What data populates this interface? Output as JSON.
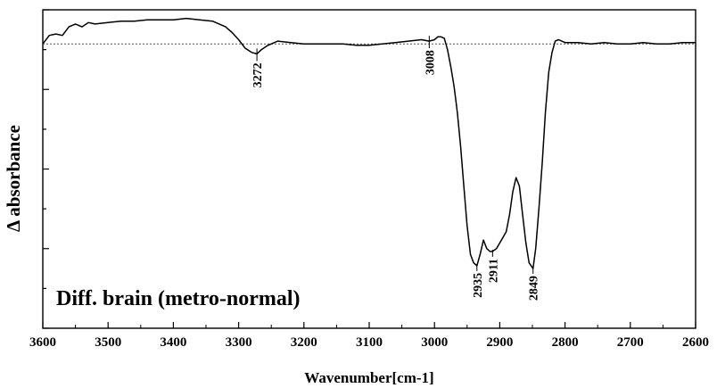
{
  "chart_data": {
    "type": "line",
    "title": "",
    "annotation": "Diff. brain (metro-normal)",
    "xlabel": "Wavenumber[cm-1]",
    "ylabel": "Δ absorbance",
    "xlim": [
      3600,
      2600
    ],
    "x_reversed": true,
    "ylim": [
      -1.0,
      0.12
    ],
    "ytick_labels_shown": false,
    "xticks": [
      3600,
      3500,
      3400,
      3300,
      3200,
      3100,
      3000,
      2900,
      2800,
      2700,
      2600
    ],
    "xtick_labels": [
      "3600",
      "3500",
      "3400",
      "3300",
      "3200",
      "3100",
      "3000",
      "2900",
      "2800",
      "2700",
      "2600"
    ],
    "baseline": {
      "y": 0,
      "style": "dotted"
    },
    "series": [
      {
        "x": [
          3600,
          3590,
          3580,
          3570,
          3560,
          3550,
          3540,
          3530,
          3520,
          3500,
          3480,
          3460,
          3440,
          3420,
          3400,
          3380,
          3360,
          3340,
          3320,
          3310,
          3300,
          3290,
          3280,
          3272,
          3265,
          3255,
          3240,
          3220,
          3200,
          3180,
          3160,
          3140,
          3120,
          3100,
          3080,
          3060,
          3040,
          3020,
          3008,
          3000,
          2995,
          2990,
          2985,
          2980,
          2975,
          2970,
          2965,
          2960,
          2955,
          2950,
          2945,
          2940,
          2935,
          2930,
          2925,
          2920,
          2915,
          2911,
          2905,
          2900,
          2895,
          2890,
          2885,
          2880,
          2875,
          2870,
          2865,
          2860,
          2855,
          2849,
          2845,
          2840,
          2835,
          2830,
          2825,
          2820,
          2815,
          2810,
          2805,
          2800,
          2780,
          2760,
          2740,
          2720,
          2700,
          2680,
          2660,
          2640,
          2620,
          2600
        ],
        "y": [
          0.0,
          0.03,
          0.035,
          0.03,
          0.06,
          0.07,
          0.06,
          0.075,
          0.07,
          0.075,
          0.08,
          0.08,
          0.085,
          0.085,
          0.085,
          0.09,
          0.085,
          0.08,
          0.06,
          0.04,
          0.015,
          -0.015,
          -0.03,
          -0.035,
          -0.02,
          -0.005,
          0.01,
          0.005,
          0.0,
          0.0,
          0.0,
          0.0,
          -0.005,
          -0.005,
          0.0,
          0.005,
          0.01,
          0.015,
          0.01,
          0.015,
          0.025,
          0.025,
          0.02,
          -0.02,
          -0.08,
          -0.15,
          -0.24,
          -0.36,
          -0.5,
          -0.64,
          -0.74,
          -0.77,
          -0.78,
          -0.74,
          -0.69,
          -0.72,
          -0.73,
          -0.73,
          -0.72,
          -0.7,
          -0.68,
          -0.66,
          -0.6,
          -0.52,
          -0.47,
          -0.5,
          -0.6,
          -0.7,
          -0.77,
          -0.79,
          -0.72,
          -0.58,
          -0.42,
          -0.24,
          -0.1,
          -0.03,
          0.01,
          0.015,
          0.01,
          0.005,
          0.005,
          0.0,
          0.005,
          0.0,
          0.0,
          0.005,
          0.0,
          0.0,
          0.005,
          0.005
        ]
      }
    ],
    "peak_labels": [
      {
        "x": 3272,
        "label": "3272"
      },
      {
        "x": 3008,
        "label": "3008"
      },
      {
        "x": 2935,
        "label": "2935"
      },
      {
        "x": 2911,
        "label": "2911"
      },
      {
        "x": 2849,
        "label": "2849"
      }
    ],
    "grid": false,
    "legend": "none",
    "colors": {
      "line": "#000000",
      "baseline": "#555555",
      "axis": "#000000"
    }
  }
}
